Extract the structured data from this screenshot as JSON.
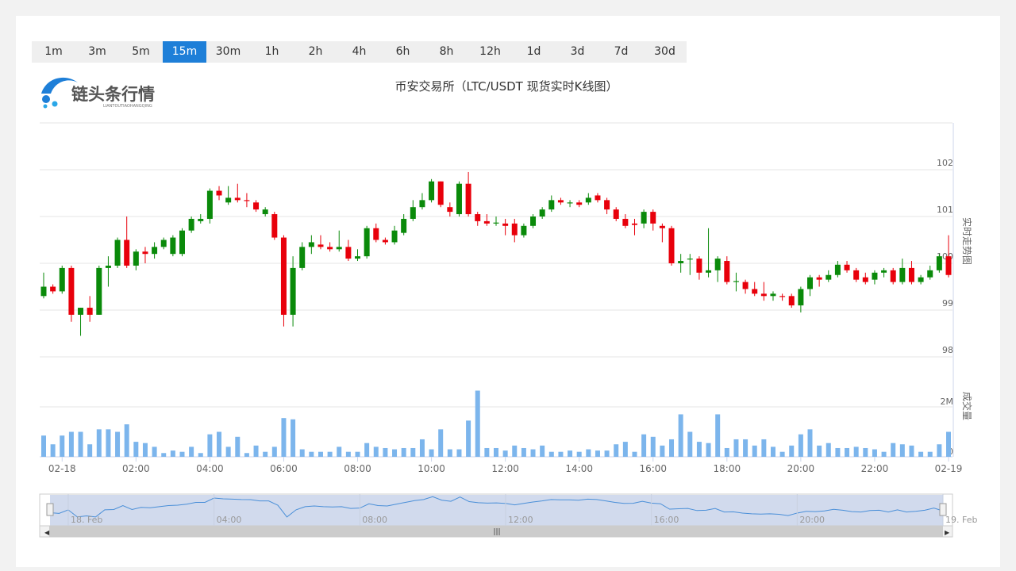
{
  "timeframes": [
    "1m",
    "3m",
    "5m",
    "15m",
    "30m",
    "1h",
    "2h",
    "4h",
    "6h",
    "8h",
    "12h",
    "1d",
    "3d",
    "7d",
    "30d"
  ],
  "active_timeframe": "15m",
  "logo": {
    "name": "链头条行情",
    "subtitle": "LIANTOUTIAOHANGQING"
  },
  "chart_data": [
    {
      "type": "candlestick",
      "title": "币安交易所（LTC/USDT 现货实时K线图）",
      "y_label": "实时走势图",
      "up_color": "#0a8a0a",
      "down_color": "#e8000b",
      "categories": [
        null,
        null,
        "02-18",
        null,
        null,
        null,
        null,
        null,
        null,
        null,
        "02:00",
        null,
        null,
        null,
        null,
        null,
        null,
        null,
        "04:00",
        null,
        null,
        null,
        null,
        null,
        null,
        null,
        "06:00",
        null,
        null,
        null,
        null,
        null,
        null,
        null,
        "08:00",
        null,
        null,
        null,
        null,
        null,
        null,
        null,
        "10:00",
        null,
        null,
        null,
        null,
        null,
        null,
        null,
        "12:00",
        null,
        null,
        null,
        null,
        null,
        null,
        null,
        "14:00",
        null,
        null,
        null,
        null,
        null,
        null,
        null,
        "16:00",
        null,
        null,
        null,
        null,
        null,
        null,
        null,
        "18:00",
        null,
        null,
        null,
        null,
        null,
        null,
        null,
        "20:00",
        null,
        null,
        null,
        null,
        null,
        null,
        null,
        "22:00",
        null,
        null,
        null,
        null,
        null,
        null,
        null,
        "02-19"
      ],
      "open": [
        99.3,
        99.5,
        99.4,
        99.9,
        98.9,
        99.05,
        98.9,
        99.9,
        99.95,
        100.5,
        99.95,
        100.25,
        100.2,
        100.35,
        100.2,
        100.2,
        100.7,
        100.9,
        100.95,
        101.55,
        101.3,
        101.4,
        101.35,
        101.3,
        101.05,
        101.05,
        100.55,
        98.9,
        99.9,
        100.35,
        100.4,
        100.35,
        100.3,
        100.35,
        100.1,
        100.15,
        100.75,
        100.5,
        100.45,
        100.65,
        100.95,
        101.2,
        101.35,
        101.75,
        101.2,
        101.05,
        101.7,
        101.05,
        100.9,
        100.85,
        100.85,
        100.85,
        100.6,
        100.8,
        101.0,
        101.15,
        101.35,
        101.28,
        101.3,
        101.3,
        101.45,
        101.35,
        101.15,
        100.95,
        100.85,
        100.85,
        101.1,
        100.8,
        100.75,
        100.0,
        100.08,
        100.1,
        99.8,
        99.85,
        100.05,
        99.6,
        99.6,
        99.45,
        99.35,
        99.3,
        99.3,
        99.3,
        99.1,
        99.45,
        99.7,
        99.65,
        99.75,
        99.97,
        99.85,
        99.7,
        99.65,
        99.8,
        99.85,
        99.6,
        99.9,
        99.6,
        99.7,
        99.85,
        100.15
      ],
      "high": [
        99.8,
        99.55,
        99.95,
        99.95,
        99.05,
        99.3,
        99.95,
        100.15,
        100.55,
        101.0,
        100.3,
        100.35,
        100.45,
        100.55,
        100.6,
        100.75,
        101.0,
        101.05,
        101.6,
        101.65,
        101.65,
        101.7,
        101.5,
        101.35,
        101.2,
        101.1,
        100.6,
        100.15,
        100.45,
        100.6,
        100.6,
        100.45,
        100.7,
        100.5,
        100.3,
        100.8,
        100.85,
        100.55,
        100.8,
        101.05,
        101.35,
        101.5,
        101.8,
        101.75,
        101.3,
        101.75,
        101.95,
        101.1,
        101.05,
        101.0,
        100.95,
        100.95,
        100.85,
        101.05,
        101.2,
        101.45,
        101.4,
        101.35,
        101.35,
        101.5,
        101.5,
        101.4,
        101.2,
        101.05,
        100.95,
        101.15,
        101.15,
        100.85,
        100.8,
        100.2,
        100.2,
        100.15,
        100.75,
        100.15,
        100.15,
        99.8,
        99.65,
        99.6,
        99.6,
        99.4,
        99.35,
        99.35,
        99.5,
        99.75,
        99.75,
        99.85,
        100.05,
        100.05,
        99.9,
        99.8,
        99.85,
        99.9,
        99.9,
        100.1,
        100.05,
        99.75,
        99.95,
        100.2,
        100.6
      ],
      "low": [
        99.25,
        99.35,
        99.35,
        98.75,
        98.45,
        98.75,
        98.9,
        99.5,
        99.9,
        99.9,
        99.85,
        100.0,
        100.1,
        100.3,
        100.15,
        100.15,
        100.65,
        100.85,
        100.85,
        101.35,
        101.25,
        101.3,
        101.2,
        101.1,
        101.0,
        100.5,
        98.65,
        98.65,
        99.85,
        100.2,
        100.3,
        100.25,
        100.25,
        100.05,
        100.05,
        100.1,
        100.45,
        100.4,
        100.4,
        100.6,
        100.9,
        101.15,
        101.3,
        101.2,
        101.0,
        101.0,
        101.0,
        100.8,
        100.8,
        100.8,
        100.6,
        100.45,
        100.55,
        100.75,
        100.95,
        101.1,
        101.25,
        101.2,
        101.2,
        101.25,
        101.3,
        101.05,
        100.9,
        100.75,
        100.6,
        100.75,
        100.7,
        100.45,
        99.95,
        99.8,
        99.75,
        99.65,
        99.7,
        99.6,
        99.55,
        99.4,
        99.35,
        99.3,
        99.2,
        99.2,
        99.2,
        99.05,
        98.95,
        99.3,
        99.5,
        99.6,
        99.7,
        99.8,
        99.6,
        99.55,
        99.55,
        99.7,
        99.55,
        99.55,
        99.55,
        99.55,
        99.65,
        99.8,
        99.7
      ],
      "close": [
        99.5,
        99.4,
        99.9,
        98.9,
        99.05,
        98.9,
        99.9,
        99.95,
        100.5,
        99.95,
        100.25,
        100.2,
        100.35,
        100.5,
        100.55,
        100.7,
        100.95,
        100.95,
        101.55,
        101.45,
        101.4,
        101.35,
        101.33,
        101.15,
        101.15,
        100.55,
        98.9,
        99.9,
        100.35,
        100.45,
        100.35,
        100.3,
        100.35,
        100.1,
        100.15,
        100.75,
        100.5,
        100.45,
        100.7,
        100.95,
        101.2,
        101.35,
        101.75,
        101.25,
        101.1,
        101.7,
        101.05,
        100.9,
        100.85,
        100.87,
        100.8,
        100.6,
        100.8,
        101.0,
        101.15,
        101.35,
        101.3,
        101.3,
        101.25,
        101.4,
        101.35,
        101.15,
        100.95,
        100.8,
        100.82,
        101.1,
        100.85,
        100.75,
        100.0,
        100.05,
        100.1,
        99.8,
        99.85,
        100.1,
        99.6,
        99.62,
        99.45,
        99.35,
        99.3,
        99.35,
        99.28,
        99.1,
        99.45,
        99.7,
        99.65,
        99.75,
        99.97,
        99.85,
        99.65,
        99.6,
        99.8,
        99.85,
        99.6,
        99.9,
        99.6,
        99.7,
        99.85,
        100.15,
        99.75
      ],
      "ylim": [
        98,
        103
      ],
      "yticks": [
        98,
        99,
        100,
        101,
        102
      ],
      "grid": true
    },
    {
      "type": "bar",
      "y_label": "成交量",
      "color": "#7cb5ec",
      "values": [
        850000,
        500000,
        850000,
        1000000,
        1000000,
        500000,
        1100000,
        1100000,
        1000000,
        1300000,
        600000,
        550000,
        400000,
        150000,
        250000,
        200000,
        400000,
        150000,
        900000,
        1000000,
        400000,
        800000,
        150000,
        450000,
        200000,
        400000,
        1550000,
        1500000,
        300000,
        200000,
        200000,
        200000,
        400000,
        200000,
        200000,
        550000,
        400000,
        350000,
        300000,
        350000,
        350000,
        700000,
        300000,
        1100000,
        300000,
        300000,
        1450000,
        2650000,
        350000,
        350000,
        250000,
        450000,
        350000,
        300000,
        450000,
        200000,
        200000,
        250000,
        200000,
        300000,
        250000,
        250000,
        500000,
        600000,
        200000,
        900000,
        800000,
        450000,
        700000,
        1700000,
        1000000,
        600000,
        550000,
        1700000,
        350000,
        700000,
        700000,
        450000,
        700000,
        400000,
        200000,
        450000,
        900000,
        1100000,
        450000,
        550000,
        350000,
        350000,
        400000,
        350000,
        300000,
        200000,
        550000,
        500000,
        450000,
        200000,
        200000,
        500000,
        1000000
      ],
      "ylim": [
        0,
        4000000
      ],
      "yticks": [
        0,
        {
          "value": 2000000,
          "label": "2M"
        }
      ],
      "grid": true
    }
  ],
  "navigator": {
    "labels": [
      "18. Feb",
      "04:00",
      "08:00",
      "12:00",
      "16:00",
      "20:00",
      "19. Feb"
    ]
  }
}
